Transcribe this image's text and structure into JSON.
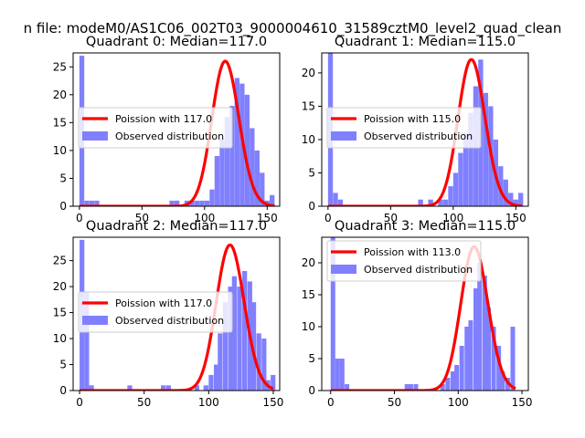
{
  "figure": {
    "suptitle": "n file: modeM0/AS1C06_002T03_9000004610_31589cztM0_level2_quad_clean"
  },
  "colors": {
    "poisson": "#ff0000",
    "observed": "#8080ff",
    "axis": "#000000",
    "background": "#ffffff"
  },
  "chart_data": [
    {
      "type": "bar",
      "panel": 0,
      "title": "Quadrant 0: Median=117.0",
      "xlim": [
        -5,
        160
      ],
      "ylim": [
        0,
        27.5
      ],
      "xticks": [
        0,
        50,
        100,
        150
      ],
      "yticks": [
        0,
        5,
        10,
        15,
        20,
        25
      ],
      "legend": {
        "position": "center-left",
        "entries": [
          "Poission with 117.0",
          "Observed distribution"
        ]
      },
      "series": [
        {
          "name": "Poission with 117.0",
          "kind": "line",
          "lambda": 117.0,
          "peak": 26,
          "x_range": [
            0,
            156
          ]
        },
        {
          "name": "Observed distribution",
          "kind": "histogram",
          "bin_width": 3.9,
          "x": [
            0,
            4,
            8,
            12,
            72,
            76,
            84,
            88,
            92,
            96,
            100,
            104,
            108,
            112,
            116,
            120,
            124,
            128,
            132,
            136,
            140,
            144,
            148,
            152
          ],
          "values": [
            27,
            1,
            1,
            1,
            1,
            1,
            1,
            1,
            1,
            1,
            1,
            3,
            9,
            12,
            16,
            18,
            23,
            22,
            20,
            14,
            10,
            6,
            1,
            2
          ]
        }
      ]
    },
    {
      "type": "bar",
      "panel": 1,
      "title": "Quadrant 1: Median=115.0",
      "xlim": [
        -5,
        160
      ],
      "ylim": [
        0,
        23
      ],
      "xticks": [
        0,
        50,
        100,
        150
      ],
      "yticks": [
        0,
        5,
        10,
        15,
        20
      ],
      "legend": {
        "position": "center-left",
        "entries": [
          "Poission with 115.0",
          "Observed distribution"
        ]
      },
      "series": [
        {
          "name": "Poission with 115.0",
          "kind": "line",
          "lambda": 115.0,
          "peak": 22,
          "x_range": [
            0,
            155
          ]
        },
        {
          "name": "Observed distribution",
          "kind": "histogram",
          "bin_width": 3.9,
          "x": [
            0,
            4,
            8,
            72,
            80,
            88,
            92,
            96,
            100,
            104,
            108,
            112,
            116,
            120,
            124,
            128,
            132,
            136,
            140,
            144,
            148,
            152
          ],
          "values": [
            23,
            2,
            1,
            1,
            1,
            1,
            1,
            3,
            5,
            8,
            11,
            14,
            18,
            22,
            17,
            15,
            10,
            6,
            4,
            2,
            1,
            2
          ]
        }
      ]
    },
    {
      "type": "bar",
      "panel": 2,
      "title": "Quadrant 2: Median=117.0",
      "xlim": [
        -5,
        155
      ],
      "ylim": [
        0,
        29.5
      ],
      "xticks": [
        0,
        50,
        100,
        150
      ],
      "yticks": [
        0,
        5,
        10,
        15,
        20,
        25
      ],
      "legend": {
        "position": "center-left",
        "entries": [
          "Poission with 117.0",
          "Observed distribution"
        ]
      },
      "series": [
        {
          "name": "Poission with 117.0",
          "kind": "line",
          "lambda": 117.0,
          "peak": 28,
          "x_range": [
            0,
            150
          ]
        },
        {
          "name": "Observed distribution",
          "kind": "histogram",
          "bin_width": 3.7,
          "x": [
            0,
            3.7,
            7.4,
            37,
            63,
            67,
            89,
            96,
            100,
            104,
            107,
            111,
            115,
            118,
            122,
            126,
            130,
            133,
            137,
            141,
            144,
            148
          ],
          "values": [
            29,
            19,
            1,
            1,
            1,
            1,
            1,
            1,
            3,
            5,
            11,
            17,
            20,
            22,
            20,
            23,
            21,
            17,
            11,
            10,
            2,
            3
          ]
        }
      ]
    },
    {
      "type": "bar",
      "panel": 3,
      "title": "Quadrant 3: Median=115.0",
      "xlim": [
        -7,
        155
      ],
      "ylim": [
        0,
        24
      ],
      "xticks": [
        0,
        50,
        100,
        150
      ],
      "yticks": [
        0,
        5,
        10,
        15,
        20
      ],
      "legend": {
        "position": "top-left",
        "entries": [
          "Poission with 113.0",
          "Observed distribution"
        ]
      },
      "series": [
        {
          "name": "Poission with 113.0",
          "kind": "line",
          "lambda": 113.0,
          "peak": 22.5,
          "x_range": [
            0,
            145
          ]
        },
        {
          "name": "Observed distribution",
          "kind": "histogram",
          "bin_width": 3.6,
          "x": [
            0,
            3.6,
            7.2,
            11,
            58,
            61,
            65,
            86,
            90,
            94,
            97,
            101,
            105,
            108,
            112,
            115,
            119,
            122,
            126,
            130,
            133,
            137,
            141
          ],
          "values": [
            24,
            5,
            5,
            1,
            1,
            1,
            1,
            1,
            2,
            3,
            4,
            7,
            10,
            11,
            16,
            20,
            18,
            13,
            10,
            7,
            3,
            2,
            10
          ]
        }
      ]
    }
  ]
}
